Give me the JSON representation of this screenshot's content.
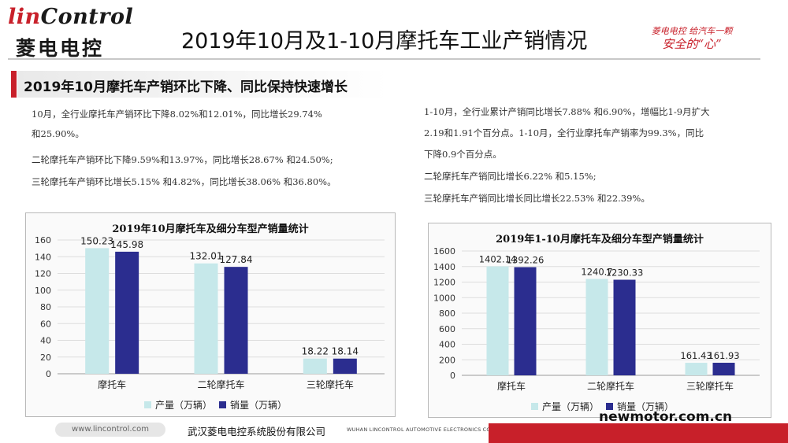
{
  "logo": {
    "brand_red": "lin",
    "brand_rest": "Control",
    "brand_cn": "菱电电控"
  },
  "slogan": {
    "line1": "菱电电控  给汽车一颗",
    "line2": "安全的“心”"
  },
  "page_title": "2019年10月及1-10月摩托车工业产销情况",
  "section_heading": "2019年10月摩托车产销环比下降、同比保持快速增长",
  "left_text": [
    "10月，全行业摩托车产销环比下降8.02%和12.01%，同比增长29.74%",
    "和25.90%。",
    "二轮摩托车产销环比下降9.59%和13.97%，同比增长28.67% 和24.50%;",
    "三轮摩托车产销环比增长5.15% 和4.82%，同比增长38.06% 和36.80%。"
  ],
  "right_text": [
    "1-10月，全行业累计产销同比增长7.88% 和6.90%，增幅比1-9月扩大",
    "2.19和1.91个百分点。1-10月，全行业摩托车产销率为99.3%，同比",
    "下降0.9个百分点。",
    "二轮摩托车产销同比增长6.22% 和5.15%;",
    "三轮摩托车产销同比增长同比增长22.53% 和22.39%。"
  ],
  "chart_data": [
    {
      "type": "bar",
      "title": "2019年10月摩托车及细分车型产销量统计",
      "categories": [
        "摩托车",
        "二轮摩托车",
        "三轮摩托车"
      ],
      "series": [
        {
          "name": "产量（万辆）",
          "values": [
            150.23,
            132.01,
            18.22
          ],
          "color": "#c6e8ea"
        },
        {
          "name": "销量（万辆）",
          "values": [
            145.98,
            127.84,
            18.14
          ],
          "color": "#2b2d8f"
        }
      ],
      "ylim": [
        0,
        160
      ],
      "yticks": [
        "0",
        "20",
        "40",
        "60",
        "80",
        "100",
        "120",
        "140",
        "160"
      ],
      "grid": true,
      "legend": "bottom"
    },
    {
      "type": "bar",
      "title": "2019年1-10月摩托车及细分车型产销量统计",
      "categories": [
        "摩托车",
        "二轮摩托车",
        "三轮摩托车"
      ],
      "series": [
        {
          "name": "产量（万辆）",
          "values": [
            1402.14,
            1240.7,
            161.43
          ],
          "color": "#c6e8ea"
        },
        {
          "name": "销量（万辆）",
          "values": [
            1392.26,
            1230.33,
            161.93
          ],
          "color": "#2b2d8f"
        }
      ],
      "ylim": [
        0,
        1600
      ],
      "yticks": [
        "0",
        "200",
        "400",
        "600",
        "800",
        "1000",
        "1200",
        "1400",
        "1600"
      ],
      "grid": true,
      "legend": "bottom"
    }
  ],
  "footer": {
    "url": "www.lincontrol.com",
    "company_cn": "武汉菱电电控系统股份有限公司",
    "company_en": "WUHAN LINCONTROL AUTOMOTIVE ELECTRONICS CO., LTD.",
    "site": "newmotor.com.cn"
  },
  "colors": {
    "brand_red": "#c8202a",
    "production": "#c6e8ea",
    "sales": "#2b2d8f"
  }
}
